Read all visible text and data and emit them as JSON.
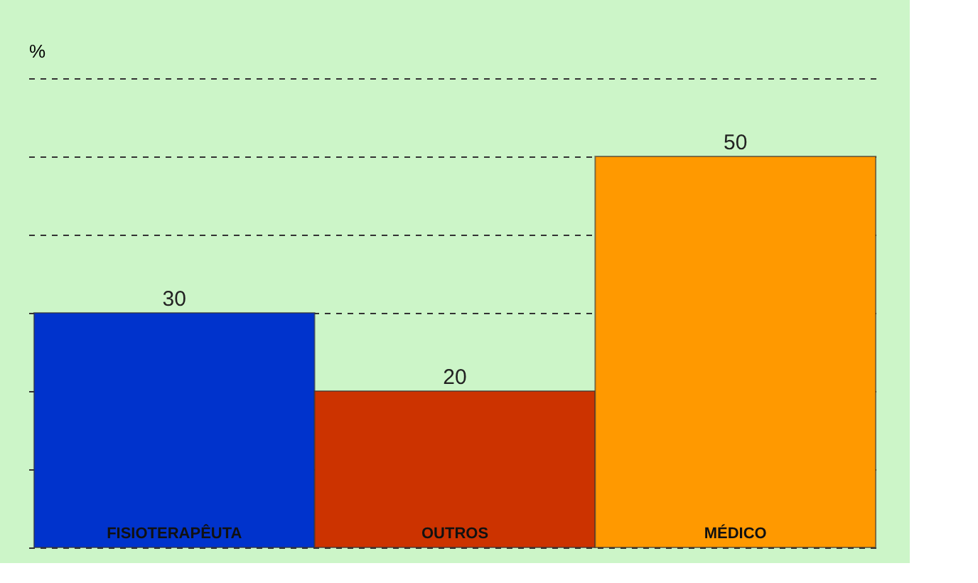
{
  "chart_data": {
    "type": "bar",
    "ylabel": "%",
    "categories": [
      "FISIOTERAPÊUTA",
      "OUTROS",
      "MÉDICO"
    ],
    "values": [
      30,
      20,
      50
    ],
    "colors": [
      "#0033cc",
      "#cc3300",
      "#ff9900"
    ],
    "ylim": [
      0,
      60
    ],
    "yticks": [
      {
        "value": 0,
        "label": null
      },
      {
        "value": 10,
        "label": null
      },
      {
        "value": 20,
        "label": null
      },
      {
        "value": 30,
        "label": null
      },
      {
        "value": 40,
        "label": null
      },
      {
        "value": 50,
        "label": null
      },
      {
        "value": 60,
        "label": null
      }
    ],
    "grid": "y",
    "data_labels": true,
    "tick_labels": "x"
  }
}
